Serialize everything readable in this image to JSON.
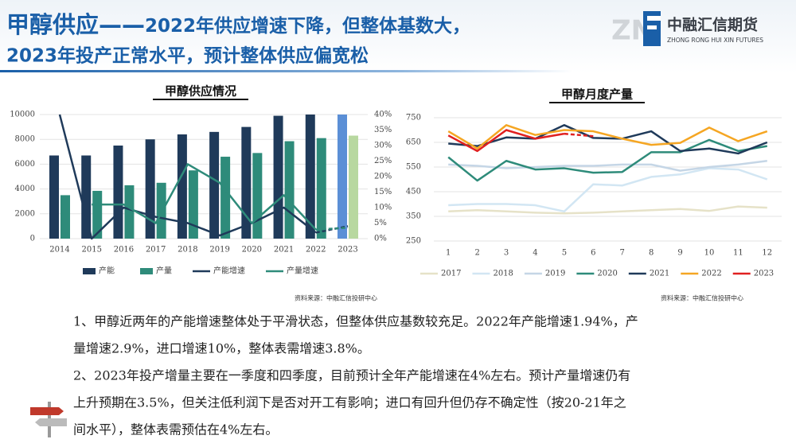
{
  "header": {
    "title_lead": "甲醇供应——",
    "title_rest": "2022年供应增速下降，但整体基数大，",
    "title_line2": "2023年投产正常水平，预计整体供应偏宽松",
    "logo_cn": "中融汇信期货",
    "logo_en": "ZHONG RONG HUI XIN FUTURES"
  },
  "chart_data": [
    {
      "type": "bar",
      "title": "甲醇供应情况",
      "source": "资料来源：中融汇信投研中心",
      "categories": [
        "2014",
        "2015",
        "2016",
        "2017",
        "2018",
        "2019",
        "2020",
        "2021",
        "2022",
        "2023"
      ],
      "highlight": "2023",
      "series": [
        {
          "name": "产能",
          "color": "#1f3a5a",
          "highlight_color": "#5b8fd6",
          "values": [
            6700,
            6700,
            7500,
            8000,
            8400,
            8600,
            9000,
            9900,
            10000,
            10000
          ]
        },
        {
          "name": "产量",
          "color": "#2e8b7a",
          "highlight_color": "#b8d8a0",
          "values": [
            3500,
            3850,
            4300,
            4500,
            5500,
            6600,
            6900,
            7850,
            8100,
            8300
          ]
        },
        {
          "name": "产能增速",
          "type": "line",
          "axis": "y2",
          "color": "#1f3a5a",
          "values": [
            40,
            0,
            10,
            7,
            5,
            1,
            5,
            10,
            1.94,
            4
          ]
        },
        {
          "name": "产量增速",
          "type": "line",
          "axis": "y2",
          "color": "#2e8b7a",
          "values": [
            null,
            11,
            11,
            5,
            24,
            18,
            5,
            14,
            2.9,
            3.5
          ]
        }
      ],
      "ylim": [
        0,
        10000
      ],
      "yticks": [
        0,
        2000,
        4000,
        6000,
        8000,
        10000
      ],
      "y2lim": [
        0,
        40
      ],
      "y2ticks": [
        {
          "value": 0,
          "label": "0%"
        },
        {
          "value": 5,
          "label": "5%"
        },
        {
          "value": 10,
          "label": "10%"
        },
        {
          "value": 15,
          "label": "15%"
        },
        {
          "value": 20,
          "label": "20%"
        },
        {
          "value": 25,
          "label": "25%"
        },
        {
          "value": 30,
          "label": "30%"
        },
        {
          "value": 35,
          "label": "35%"
        },
        {
          "value": 40,
          "label": "40%"
        }
      ],
      "grid": true
    },
    {
      "type": "line",
      "title": "甲醇月度产量",
      "source": "资料来源：中融汇信投研中心",
      "x": [
        1,
        2,
        3,
        4,
        5,
        6,
        7,
        8,
        9,
        10,
        11,
        12
      ],
      "xlim": [
        0.5,
        12.5
      ],
      "xticks": [
        1,
        2,
        3,
        4,
        5,
        6,
        7,
        8,
        9,
        10,
        11,
        12
      ],
      "series": [
        {
          "name": "2017",
          "color": "#e6e2c8",
          "values": [
            370,
            375,
            370,
            365,
            362,
            365,
            370,
            375,
            380,
            372,
            390,
            385
          ]
        },
        {
          "name": "2018",
          "color": "#d2e6f3",
          "values": [
            395,
            400,
            400,
            395,
            370,
            480,
            475,
            510,
            520,
            545,
            540,
            500
          ]
        },
        {
          "name": "2019",
          "color": "#c5d6e6",
          "values": [
            560,
            555,
            545,
            550,
            555,
            555,
            560,
            560,
            535,
            550,
            560,
            575
          ]
        },
        {
          "name": "2020",
          "color": "#2e8b7a",
          "values": [
            590,
            495,
            575,
            540,
            545,
            527,
            530,
            610,
            610,
            660,
            615,
            635
          ]
        },
        {
          "name": "2021",
          "color": "#1f3a5a",
          "values": [
            645,
            635,
            670,
            665,
            720,
            668,
            665,
            695,
            615,
            625,
            605,
            650
          ]
        },
        {
          "name": "2022",
          "color": "#f5a623",
          "values": [
            695,
            625,
            720,
            680,
            700,
            695,
            665,
            640,
            648,
            710,
            655,
            695
          ]
        },
        {
          "name": "2023",
          "color": "#e02020",
          "dashed_last": true,
          "values": [
            678,
            615,
            700,
            665,
            685,
            675,
            null,
            null,
            null,
            null,
            null,
            null
          ]
        }
      ],
      "ylim": [
        250,
        750
      ],
      "yticks": [
        250,
        350,
        450,
        550,
        650,
        750
      ],
      "grid": true
    }
  ],
  "body": {
    "lines": [
      "1、甲醇近两年的产能增速整体处于平滑状态，但整体供应基数较充足。2022年产能增速1.94%，产",
      "量增速2.9%，进口增速10%，整体表需增速3.8%。",
      "2、2023年投产增量主要在一季度和四季度，目前预计全年产能增速在4%左右。预计产量增速仍有",
      "上升预期在3.5%，但关注低利润下是否对开工有影响；进口有回升但仍存不确定性（按20-21年之",
      "间水平），整体表需预估在4%左右。"
    ]
  }
}
